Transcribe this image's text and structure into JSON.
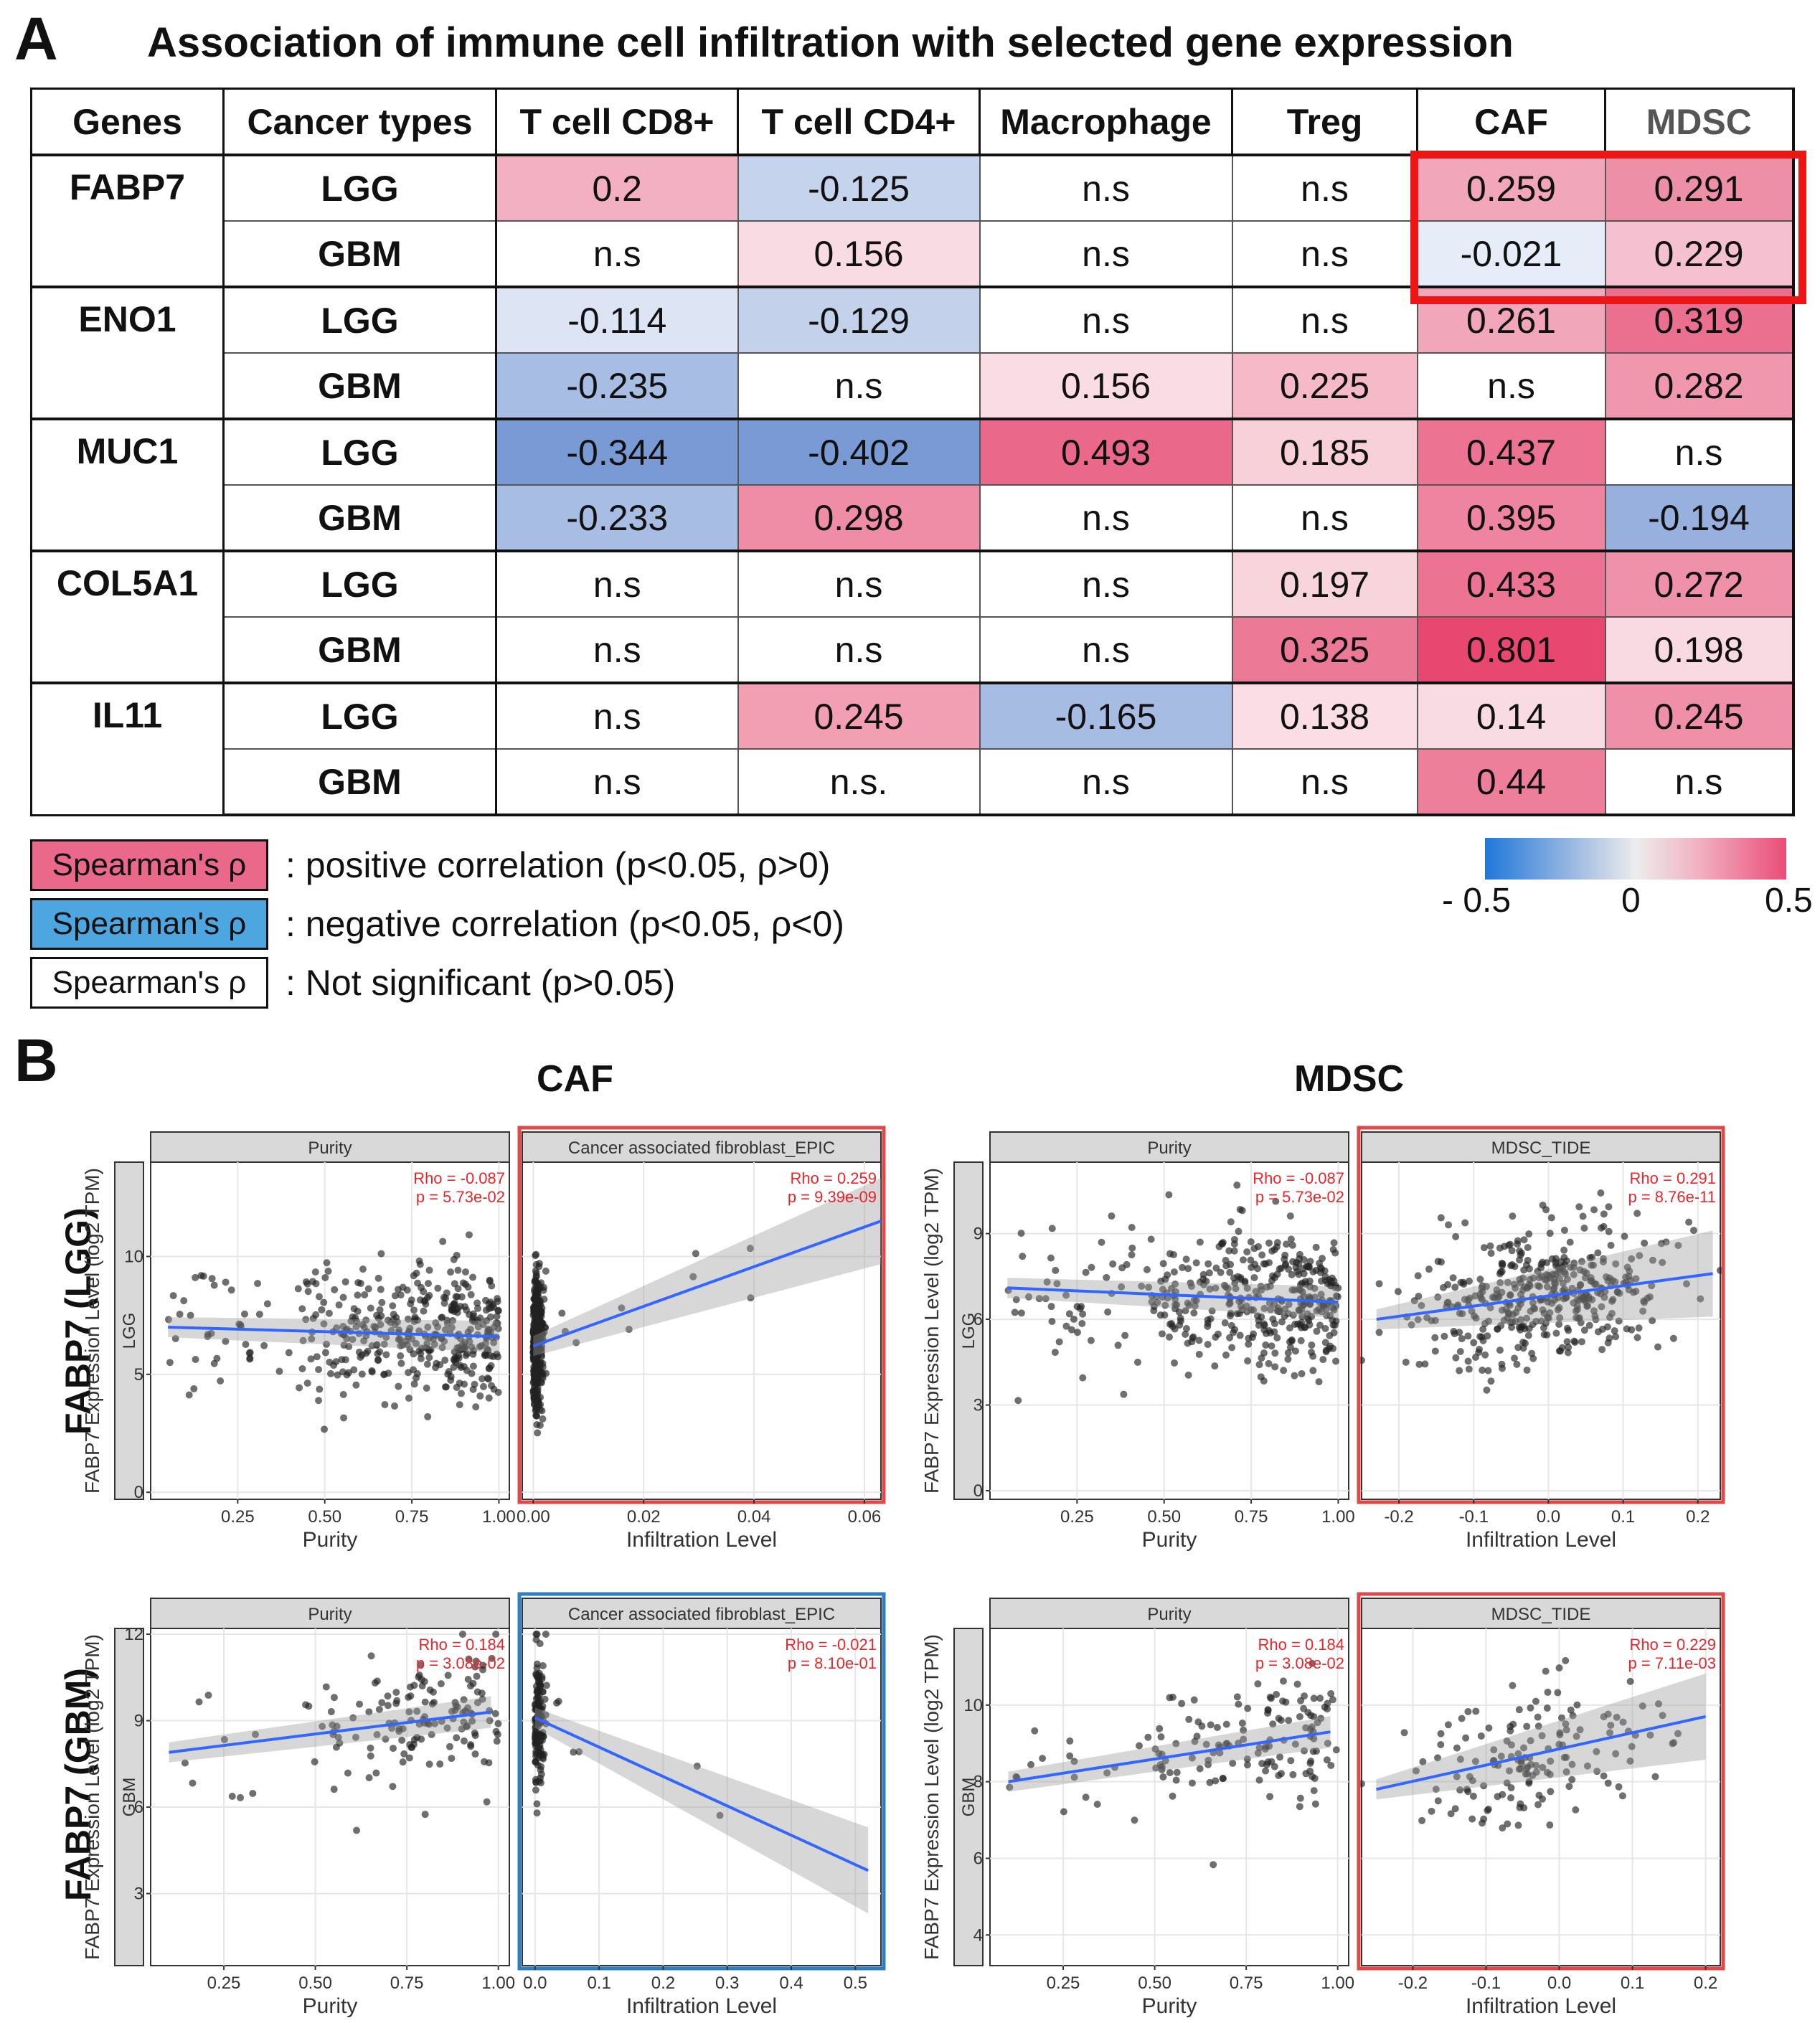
{
  "panel_a": {
    "letter": "A",
    "title": "Association of immune cell infiltration with selected gene expression",
    "headers": [
      "Genes",
      "Cancer types",
      "T cell  CD8+",
      "T cell  CD4+",
      "Macrophage",
      "Treg",
      "CAF",
      "MDSC"
    ],
    "groups": [
      {
        "gene": "FABP7",
        "rows": [
          {
            "type": "LGG",
            "cells": [
              {
                "t": "0.2",
                "c": "#f3b0c2"
              },
              {
                "t": "-0.125",
                "c": "#c5d3ec"
              },
              {
                "t": "n.s",
                "c": "#ffffff"
              },
              {
                "t": "n.s",
                "c": "#ffffff"
              },
              {
                "t": "0.259",
                "c": "#f1a6ba"
              },
              {
                "t": "0.291",
                "c": "#ee8fa8"
              }
            ]
          },
          {
            "type": "GBM",
            "cells": [
              {
                "t": "n.s",
                "c": "#ffffff"
              },
              {
                "t": "0.156",
                "c": "#f9dbe3"
              },
              {
                "t": "n.s",
                "c": "#ffffff"
              },
              {
                "t": "n.s",
                "c": "#ffffff"
              },
              {
                "t": "-0.021",
                "c": "#e6ecf8"
              },
              {
                "t": "0.229",
                "c": "#f5c0cf"
              }
            ]
          }
        ]
      },
      {
        "gene": "ENO1",
        "rows": [
          {
            "type": "LGG",
            "cells": [
              {
                "t": "-0.114",
                "c": "#dde4f4"
              },
              {
                "t": "-0.129",
                "c": "#c3d1eb"
              },
              {
                "t": "n.s",
                "c": "#ffffff"
              },
              {
                "t": "n.s",
                "c": "#ffffff"
              },
              {
                "t": "0.261",
                "c": "#f1a6ba"
              },
              {
                "t": "0.319",
                "c": "#eb7090"
              }
            ]
          },
          {
            "type": "GBM",
            "cells": [
              {
                "t": "-0.235",
                "c": "#a8bde3"
              },
              {
                "t": "n.s",
                "c": "#ffffff"
              },
              {
                "t": "0.156",
                "c": "#fadde4"
              },
              {
                "t": "0.225",
                "c": "#f5b9c8"
              },
              {
                "t": "n.s",
                "c": "#ffffff"
              },
              {
                "t": "0.282",
                "c": "#f096ad"
              }
            ]
          }
        ]
      },
      {
        "gene": "MUC1",
        "rows": [
          {
            "type": "LGG",
            "cells": [
              {
                "t": "-0.344",
                "c": "#7a9ad6"
              },
              {
                "t": "-0.402",
                "c": "#7a9ad6"
              },
              {
                "t": "0.493",
                "c": "#ea6889"
              },
              {
                "t": "0.185",
                "c": "#f8d0da"
              },
              {
                "t": "0.437",
                "c": "#ec7391"
              },
              {
                "t": "n.s",
                "c": "#ffffff"
              }
            ]
          },
          {
            "type": "GBM",
            "cells": [
              {
                "t": "-0.233",
                "c": "#a8bde3"
              },
              {
                "t": "0.298",
                "c": "#ef8da6"
              },
              {
                "t": "n.s",
                "c": "#ffffff"
              },
              {
                "t": "n.s",
                "c": "#ffffff"
              },
              {
                "t": "0.395",
                "c": "#ee849f"
              },
              {
                "t": "-0.194",
                "c": "#97b0dd"
              }
            ]
          }
        ]
      },
      {
        "gene": "COL5A1",
        "rows": [
          {
            "type": "LGG",
            "cells": [
              {
                "t": "n.s",
                "c": "#ffffff"
              },
              {
                "t": "n.s",
                "c": "#ffffff"
              },
              {
                "t": "n.s",
                "c": "#ffffff"
              },
              {
                "t": "0.197",
                "c": "#f8d4dd"
              },
              {
                "t": "0.433",
                "c": "#ec7391"
              },
              {
                "t": "0.272",
                "c": "#ef91a9"
              }
            ]
          },
          {
            "type": "GBM",
            "cells": [
              {
                "t": "n.s",
                "c": "#ffffff"
              },
              {
                "t": "n.s",
                "c": "#ffffff"
              },
              {
                "t": "n.s",
                "c": "#ffffff"
              },
              {
                "t": "0.325",
                "c": "#ec7a96"
              },
              {
                "t": "0.801",
                "c": "#e8476f"
              },
              {
                "t": "0.198",
                "c": "#f9dae2"
              }
            ]
          }
        ]
      },
      {
        "gene": "IL11",
        "rows": [
          {
            "type": "LGG",
            "cells": [
              {
                "t": "n.s",
                "c": "#ffffff"
              },
              {
                "t": "0.245",
                "c": "#f29fb4"
              },
              {
                "t": "-0.165",
                "c": "#a7bce3"
              },
              {
                "t": "0.138",
                "c": "#fadde5"
              },
              {
                "t": "0.14",
                "c": "#f9dbe3"
              },
              {
                "t": "0.245",
                "c": "#f08fa8"
              }
            ]
          },
          {
            "type": "GBM",
            "cells": [
              {
                "t": "n.s",
                "c": "#ffffff"
              },
              {
                "t": "n.s.",
                "c": "#ffffff"
              },
              {
                "t": "n.s",
                "c": "#ffffff"
              },
              {
                "t": "n.s",
                "c": "#ffffff"
              },
              {
                "t": "0.44",
                "c": "#ed7f9b"
              },
              {
                "t": "n.s",
                "c": "#ffffff"
              }
            ]
          }
        ]
      }
    ],
    "legend": [
      {
        "swatch": "Spearman's ρ",
        "text": ": positive correlation (p<0.05, ρ>0)",
        "color": "#ea6889"
      },
      {
        "swatch": "Spearman's ρ",
        "text": ": negative correlation (p<0.05, ρ<0)",
        "color": "#4ea6e0"
      },
      {
        "swatch": "Spearman's ρ",
        "text": ": Not significant (p>0.05)",
        "color": "#ffffff"
      }
    ],
    "colorbar": {
      "min_label": "- 0.5",
      "mid_label": "0",
      "max_label": "0.5"
    }
  },
  "panel_b": {
    "letter": "B",
    "col_titles": {
      "caf": "CAF",
      "mdsc": "MDSC"
    },
    "row_labels": {
      "lgg": "FABP7 (LGG)",
      "gbm": "FABP7 (GBM)"
    },
    "ylabel": "FABP7 Expression Level (log2 TPM)",
    "axis_labels": {
      "purity": "Purity",
      "infiltration": "Infiltration Level"
    }
  },
  "chart_data": [
    {
      "type": "scatter",
      "id": "caf_lgg",
      "strip": "LGG",
      "xlabel_left": "Purity",
      "xlabel_right": "Infiltration Level",
      "ylim": [
        -0.3,
        14
      ],
      "yticks": [
        0,
        5,
        10
      ],
      "frame_right": "#e0484a",
      "left": {
        "title": "Purity",
        "xlim": [
          0,
          1.03
        ],
        "xticks": [
          0.25,
          0.5,
          0.75,
          1.0
        ],
        "xtick_labels": [
          "0.25",
          "0.50",
          "0.75",
          "1.00"
        ],
        "rho": "Rho = -0.087",
        "p": "p = 5.73e-02",
        "line": [
          [
            0.05,
            7.0
          ],
          [
            1.0,
            6.6
          ]
        ]
      },
      "right": {
        "title": "Cancer associated fibroblast_EPIC",
        "xlim": [
          -0.002,
          0.063
        ],
        "xticks": [
          0,
          0.02,
          0.04,
          0.06
        ],
        "xtick_labels": [
          "0.00",
          "0.02",
          "0.04",
          "0.06"
        ],
        "rho": "Rho = 0.259",
        "p": "p = 9.39e-09",
        "line": [
          [
            0,
            6.2
          ],
          [
            0.063,
            11.5
          ]
        ]
      }
    },
    {
      "type": "scatter",
      "id": "mdsc_lgg",
      "strip": "LGG",
      "xlabel_left": "Purity",
      "xlabel_right": "Infiltration Level",
      "ylim": [
        -0.3,
        11.5
      ],
      "yticks": [
        0,
        3,
        6,
        9
      ],
      "frame_right": "#e0484a",
      "left": {
        "title": "Purity",
        "xlim": [
          0,
          1.03
        ],
        "xticks": [
          0.25,
          0.5,
          0.75,
          1.0
        ],
        "xtick_labels": [
          "0.25",
          "0.50",
          "0.75",
          "1.00"
        ],
        "rho": "Rho = -0.087",
        "p": "p = 5.73e-02",
        "line": [
          [
            0.05,
            7.1
          ],
          [
            1.0,
            6.6
          ]
        ]
      },
      "right": {
        "title": "MDSC_TIDE",
        "xlim": [
          -0.25,
          0.23
        ],
        "xticks": [
          -0.2,
          -0.1,
          0,
          0.1,
          0.2
        ],
        "xtick_labels": [
          "-0.2",
          "-0.1",
          "0.0",
          "0.1",
          "0.2"
        ],
        "rho": "Rho = 0.291",
        "p": "p = 8.76e-11",
        "line": [
          [
            -0.23,
            6.0
          ],
          [
            0.22,
            7.6
          ]
        ]
      }
    },
    {
      "type": "scatter",
      "id": "caf_gbm",
      "strip": "GBM",
      "xlabel_left": "Purity",
      "xlabel_right": "Infiltration Level",
      "ylim": [
        0.5,
        12.2
      ],
      "yticks": [
        3,
        6,
        9,
        12
      ],
      "frame_right": "#2b7fc2",
      "left": {
        "title": "Purity",
        "xlim": [
          0.05,
          1.03
        ],
        "xticks": [
          0.25,
          0.5,
          0.75,
          1.0
        ],
        "xtick_labels": [
          "0.25",
          "0.50",
          "0.75",
          "1.00"
        ],
        "rho": "Rho = 0.184",
        "p": "p = 3.08e-02",
        "line": [
          [
            0.1,
            7.9
          ],
          [
            0.98,
            9.3
          ]
        ]
      },
      "right": {
        "title": "Cancer associated fibroblast_EPIC",
        "xlim": [
          -0.02,
          0.54
        ],
        "xticks": [
          0,
          0.1,
          0.2,
          0.3,
          0.4,
          0.5
        ],
        "xtick_labels": [
          "0.0",
          "0.1",
          "0.2",
          "0.3",
          "0.4",
          "0.5"
        ],
        "rho": "Rho = -0.021",
        "p": "p = 8.10e-01",
        "line": [
          [
            0,
            9.1
          ],
          [
            0.52,
            3.8
          ]
        ]
      }
    },
    {
      "type": "scatter",
      "id": "mdsc_gbm",
      "strip": "GBM",
      "xlabel_left": "Purity",
      "xlabel_right": "Infiltration Level",
      "ylim": [
        3.2,
        12
      ],
      "yticks": [
        4,
        6,
        8,
        10
      ],
      "frame_right": "#e0484a",
      "left": {
        "title": "Purity",
        "xlim": [
          0.05,
          1.03
        ],
        "xticks": [
          0.25,
          0.5,
          0.75,
          1.0
        ],
        "xtick_labels": [
          "0.25",
          "0.50",
          "0.75",
          "1.00"
        ],
        "rho": "Rho = 0.184",
        "p": "p = 3.08e-02",
        "line": [
          [
            0.1,
            8.0
          ],
          [
            0.98,
            9.3
          ]
        ]
      },
      "right": {
        "title": "MDSC_TIDE",
        "xlim": [
          -0.27,
          0.22
        ],
        "xticks": [
          -0.2,
          -0.1,
          0,
          0.1,
          0.2
        ],
        "xtick_labels": [
          "-0.2",
          "-0.1",
          "0.0",
          "0.1",
          "0.2"
        ],
        "rho": "Rho = 0.229",
        "p": "p = 7.11e-03",
        "line": [
          [
            -0.25,
            7.8
          ],
          [
            0.2,
            9.7
          ]
        ]
      }
    }
  ]
}
